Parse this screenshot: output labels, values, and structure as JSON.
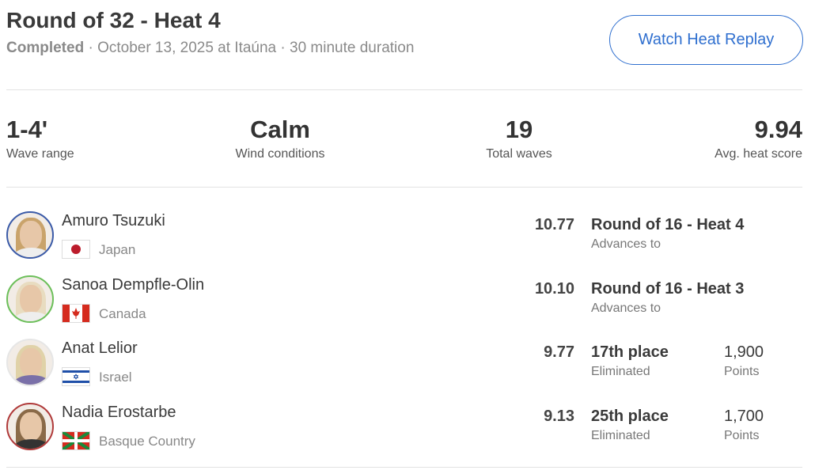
{
  "header": {
    "title": "Round of 32 - Heat 4",
    "status": "Completed",
    "details": " · October 13, 2025 at Itaúna · 30 minute duration",
    "replay_button": "Watch Heat Replay",
    "accent": "#2f6fcf"
  },
  "stats": [
    {
      "value": "1-4'",
      "label": "Wave range"
    },
    {
      "value": "Calm",
      "label": "Wind conditions"
    },
    {
      "value": "19",
      "label": "Total waves"
    },
    {
      "value": "9.94",
      "label": "Avg. heat score"
    }
  ],
  "athletes": [
    {
      "name": "Amuro Tsuzuki",
      "country": "Japan",
      "flag": "japan",
      "ring": "#3b5ba8",
      "score": "10.77",
      "result": "Round of 16 - Heat 4",
      "result_sub": "Advances to",
      "points": "",
      "points_sub": ""
    },
    {
      "name": "Sanoa Dempfle-Olin",
      "country": "Canada",
      "flag": "canada",
      "ring": "#6cbf5a",
      "score": "10.10",
      "result": "Round of 16 - Heat 3",
      "result_sub": "Advances to",
      "points": "",
      "points_sub": ""
    },
    {
      "name": "Anat Lelior",
      "country": "Israel",
      "flag": "israel",
      "ring": "#e6e6e6",
      "score": "9.77",
      "result": "17th place",
      "result_sub": "Eliminated",
      "points": "1,900",
      "points_sub": "Points"
    },
    {
      "name": "Nadia Erostarbe",
      "country": "Basque Country",
      "flag": "basque",
      "ring": "#b03a3a",
      "score": "9.13",
      "result": "25th place",
      "result_sub": "Eliminated",
      "points": "1,700",
      "points_sub": "Points"
    }
  ]
}
